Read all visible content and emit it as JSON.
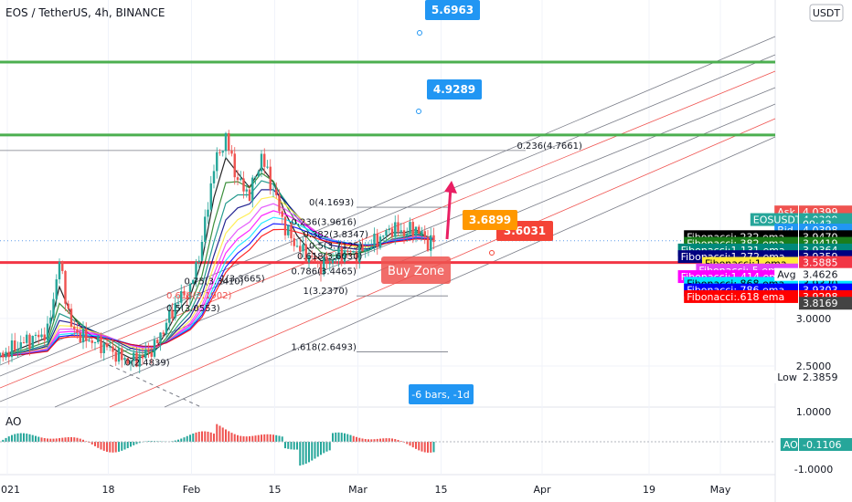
{
  "header": {
    "title": "EOS / TetherUS, 4h, BINANCE"
  },
  "currency_badge": "USDT",
  "colors": {
    "up": "#26a69a",
    "down": "#ef5350",
    "green_line": "#4caf50",
    "red_line": "#f23645",
    "blue_label": "#2196f3",
    "orange_label": "#ff9800",
    "red_label": "#f44336"
  },
  "price_axis": {
    "ticks": [
      "3.0000",
      "2.5000"
    ],
    "ao_ticks": [
      "1.0000",
      "-1.0000"
    ],
    "labels": [
      {
        "text": "Ask",
        "value": "4.0399",
        "bg": "#ef5350",
        "fg": "#ffffff",
        "yv": 4.12
      },
      {
        "text": "EOSUSDT",
        "value": "4.0399",
        "bg": "#26a69a",
        "fg": "#ffffff",
        "yv": 4.0399
      },
      {
        "text": "",
        "value": "09:43",
        "bg": "#26a69a",
        "fg": "#ffffff",
        "yv": 3.99
      },
      {
        "text": "Bid",
        "value": "4.0398",
        "bg": "#2196f3",
        "fg": "#ffffff",
        "yv": 3.93
      },
      {
        "text": "Fibonacci:.232 ema",
        "value": "3.9470",
        "bg": "#000000",
        "fg": "#ffffff",
        "yv": 3.86
      },
      {
        "text": "Fibonacci:.382 ema",
        "value": "3.9419",
        "bg": "#1b7d1b",
        "fg": "#ffffff",
        "yv": 3.79
      },
      {
        "text": "Fibonacci:1.131 ema",
        "value": "3.9364",
        "bg": "#00897b",
        "fg": "#ffffff",
        "yv": 3.72
      },
      {
        "text": "Fibonacci:1.272 ema",
        "value": "3.9359",
        "bg": "#000080",
        "fg": "#ffffff",
        "yv": 3.65
      },
      {
        "text": "Fibonacci:1 ema",
        "value": "3.9348",
        "bg": "#ffeb3b",
        "fg": "#000000",
        "yv": 3.58
      },
      {
        "text": "Fibonacci:.5 ema",
        "value": "3.9340",
        "bg": "#e040fb",
        "fg": "#ffffff",
        "yv": 3.51
      },
      {
        "text": "Fibonacci:1.414 ema",
        "value": "3.9327",
        "bg": "#ff00ff",
        "fg": "#ffffff",
        "yv": 3.44
      },
      {
        "text": "Fibonacci:.868 ema",
        "value": "3.9320",
        "bg": "#00e5ff",
        "fg": "#000000",
        "yv": 3.37
      },
      {
        "text": "Fibonacci:.786 ema",
        "value": "3.9303",
        "bg": "#0000ff",
        "fg": "#ffffff",
        "yv": 3.3
      },
      {
        "text": "Fibonacci:.618 ema",
        "value": "3.9298",
        "bg": "#ff0000",
        "fg": "#ffffff",
        "yv": 3.23
      },
      {
        "text": "",
        "value": "3.8169",
        "bg": "#444444",
        "fg": "#ffffff",
        "yv": 3.16
      },
      {
        "text": "",
        "value": "3.5885",
        "bg": "#f23645",
        "fg": "#ffffff",
        "yv": 3.5885
      },
      {
        "text": "Avg",
        "value": "3.4626",
        "bg": "#ffffff",
        "fg": "#131722",
        "yv": 3.4626
      },
      {
        "text": "Low",
        "value": "2.3859",
        "bg": "#ffffff",
        "fg": "#131722",
        "yv": 2.3859
      },
      {
        "text": "AO",
        "value": "-0.1106",
        "bg": "#26a69a",
        "fg": "#ffffff",
        "ao": true
      }
    ]
  },
  "time_axis": [
    {
      "label": "2021",
      "x": 0
    },
    {
      "label": "18",
      "x": 17
    },
    {
      "label": "Feb",
      "x": 31
    },
    {
      "label": "15",
      "x": 45
    },
    {
      "label": "Mar",
      "x": 59
    },
    {
      "label": "15",
      "x": 73
    },
    {
      "label": "Apr",
      "x": 90
    },
    {
      "label": "19",
      "x": 108
    },
    {
      "label": "May",
      "x": 120
    }
  ],
  "annotations": {
    "label_5_6963": "5.6963",
    "label_4_9289": "4.9289",
    "label_3_6899": "3.6899",
    "label_3_6031": "3.6031",
    "buy_zone": "Buy Zone",
    "bars_label": "-6 bars, -1d",
    "ao_label": "AO"
  },
  "fib_upper": [
    {
      "text": "0.236(4.7661)",
      "x": 87,
      "yv": 4.7661
    },
    {
      "text": "0(4.1693)",
      "x": 52,
      "yv": 4.1693
    },
    {
      "text": "0.236(3.9616)",
      "x": 49,
      "yv": 3.9616
    },
    {
      "text": "0.382(3.8347)",
      "x": 51,
      "yv": 3.8347
    },
    {
      "text": "0.5(3.7125)",
      "x": 52,
      "yv": 3.7125
    },
    {
      "text": "0.618(3.6030)",
      "x": 50,
      "yv": 3.603
    },
    {
      "text": "1(3.3665)",
      "x": 37,
      "yv": 3.3665
    },
    {
      "text": "0.786(3.4465)",
      "x": 49,
      "yv": 3.4465
    },
    {
      "text": "0.75(3.3410)",
      "x": 31,
      "yv": 3.341
    },
    {
      "text": "0.618(3.1902)",
      "x": 28,
      "yv": 3.1902
    },
    {
      "text": "0.5(3.0553)",
      "x": 28,
      "yv": 3.0553
    },
    {
      "text": "1(3.2370)",
      "x": 51,
      "yv": 3.237
    },
    {
      "text": "1.618(2.6493)",
      "x": 49,
      "yv": 2.6493
    },
    {
      "text": "0(2.4839)",
      "x": 21,
      "yv": 2.4839
    }
  ],
  "chart_data": {
    "type": "line",
    "symbol": "EOSUSDT",
    "x_unit": "days from 2021-01-01",
    "xlim": [
      0,
      141
    ],
    "ylim": [
      2.2,
      5.75
    ],
    "horizontal_levels": [
      {
        "value": 5.6963,
        "color": "#4caf50"
      },
      {
        "value": 4.9289,
        "color": "#4caf50"
      },
      {
        "value": 3.5885,
        "color": "#f23645"
      }
    ],
    "series": [
      {
        "name": "EOSUSDT",
        "x": [
          0,
          4,
          8,
          10,
          12,
          14,
          16,
          18,
          20,
          22,
          24,
          26,
          28,
          30,
          32,
          34,
          36,
          38,
          40,
          42,
          44,
          46,
          48,
          50,
          52,
          54,
          56,
          58,
          60,
          62,
          64,
          66,
          68,
          70,
          72,
          73
        ],
        "values": [
          2.6,
          2.75,
          2.85,
          3.6,
          2.9,
          2.8,
          2.75,
          2.7,
          2.6,
          2.55,
          2.6,
          2.7,
          2.95,
          3.2,
          3.3,
          3.8,
          4.6,
          4.9,
          4.45,
          4.3,
          4.7,
          4.35,
          3.95,
          3.75,
          3.65,
          3.55,
          3.62,
          3.7,
          3.68,
          3.75,
          3.85,
          3.95,
          3.9,
          3.95,
          3.8,
          3.82
        ]
      }
    ]
  }
}
